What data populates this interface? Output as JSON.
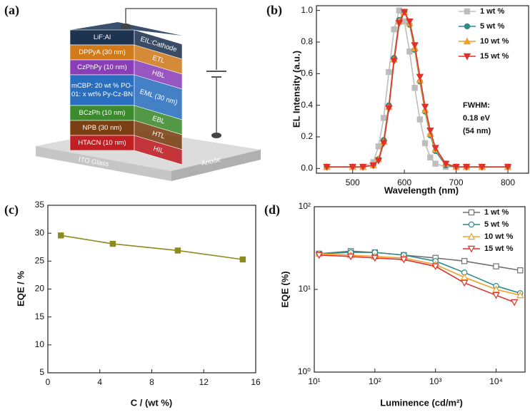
{
  "panel_labels": [
    "(a)",
    "(b)",
    "(c)",
    "(d)"
  ],
  "device": {
    "layers": [
      {
        "material_lines": [
          "LiF:Al"
        ],
        "role": "EIL:Cathode",
        "color": "#1e3350"
      },
      {
        "material_lines": [
          "DPPyA (30 nm)"
        ],
        "role": "ETL",
        "color": "#d07a1c"
      },
      {
        "material_lines": [
          "CzPhPy (10 nm)"
        ],
        "role": "HBL",
        "color": "#8a3fb8"
      },
      {
        "material_lines": [
          "mCBP: 20 wt % PO-",
          "01: x wt% Py-Cz-BN"
        ],
        "role": "EML (30 nm)",
        "color": "#2a6fbf"
      },
      {
        "material_lines": [
          "BCzPh (10 nm)"
        ],
        "role": "EBL",
        "color": "#3c8a2e"
      },
      {
        "material_lines": [
          "NPB (30 nm)"
        ],
        "role": "HTL",
        "color": "#7a3f12"
      },
      {
        "material_lines": [
          "HTACN (10 nm)"
        ],
        "role": "HIL",
        "color": "#c01f24"
      }
    ],
    "substrate": "ITO Glass",
    "anode": "Anode"
  },
  "chart_data": [
    {
      "type": "line",
      "x_label": "Wavelength (nm)",
      "y_label": "EL Intensity (a.u.)",
      "x": [
        450,
        500,
        520,
        540,
        550,
        560,
        570,
        580,
        590,
        600,
        610,
        620,
        630,
        640,
        650,
        660,
        680,
        700,
        720,
        750,
        800
      ],
      "xlim": [
        430,
        840
      ],
      "xticks": [
        500,
        600,
        700,
        800
      ],
      "ylim": [
        -0.03,
        1.03
      ],
      "yticks": [
        {
          "value": 0,
          "label": "0.0"
        },
        0.2,
        0.4,
        0.6,
        0.8,
        {
          "value": 1,
          "label": "1.0"
        }
      ],
      "legend": "upper right",
      "annotations": [
        "FWHM:",
        "0.18 eV",
        "(54 nm)"
      ],
      "series": [
        {
          "name": "1 wt %",
          "color": "#bdbdbd",
          "marker": "square",
          "values": [
            0.01,
            0.01,
            0.01,
            0.04,
            0.14,
            0.32,
            0.61,
            0.88,
            1.0,
            0.93,
            0.74,
            0.51,
            0.31,
            0.16,
            0.07,
            0.03,
            0.01,
            0.01,
            0.01,
            0.01,
            0.01
          ]
        },
        {
          "name": "5 wt %",
          "color": "#2f8c8a",
          "marker": "circle",
          "values": [
            0.01,
            0.01,
            0.01,
            0.02,
            0.06,
            0.18,
            0.4,
            0.7,
            0.94,
            0.99,
            0.91,
            0.75,
            0.55,
            0.36,
            0.21,
            0.11,
            0.02,
            0.01,
            0.01,
            0.01,
            0.01
          ]
        },
        {
          "name": "10 wt %",
          "color": "#f2a127",
          "marker": "triangle-up",
          "values": [
            0.01,
            0.01,
            0.01,
            0.02,
            0.06,
            0.17,
            0.39,
            0.69,
            0.93,
            0.99,
            0.92,
            0.76,
            0.56,
            0.37,
            0.22,
            0.12,
            0.03,
            0.01,
            0.01,
            0.01,
            0.01
          ]
        },
        {
          "name": "15 wt %",
          "color": "#e0302a",
          "marker": "triangle-down",
          "values": [
            0.01,
            0.01,
            0.01,
            0.02,
            0.05,
            0.16,
            0.38,
            0.68,
            0.92,
            0.99,
            0.93,
            0.78,
            0.58,
            0.39,
            0.24,
            0.13,
            0.03,
            0.01,
            0.01,
            0.01,
            0.01
          ]
        }
      ]
    },
    {
      "type": "line",
      "x_label": "C / (wt %)",
      "y_label": "EQE / %",
      "x": [
        1,
        5,
        10,
        15
      ],
      "xlim": [
        0,
        16
      ],
      "xticks": [
        0,
        4,
        8,
        12,
        16
      ],
      "ylim": [
        5,
        35
      ],
      "yticks": [
        5,
        10,
        15,
        20,
        25,
        30,
        35
      ],
      "series": [
        {
          "color": "#8b8c1c",
          "marker": "square",
          "values": [
            29.6,
            28.1,
            26.9,
            25.3
          ]
        }
      ]
    },
    {
      "type": "line",
      "x_label": "Luminence (cd/m²)",
      "y_label": "EQE (%)",
      "xscale": "log",
      "yscale": "log",
      "markers_open": true,
      "legend": "upper right",
      "xlim": [
        10,
        30000
      ],
      "xticks": [
        {
          "value": 10,
          "label": "10¹"
        },
        {
          "value": 100,
          "label": "10²"
        },
        {
          "value": 1000,
          "label": "10³"
        },
        {
          "value": 10000,
          "label": "10⁴"
        }
      ],
      "ylim": [
        1,
        100
      ],
      "yticks": [
        {
          "value": 1,
          "label": "10⁰"
        },
        {
          "value": 10,
          "label": "10¹"
        },
        {
          "value": 100,
          "label": "10²"
        }
      ],
      "series": [
        {
          "name": "1 wt %",
          "color": "#707070",
          "marker": "square",
          "x": [
            12,
            40,
            100,
            300,
            1000,
            3000,
            10000,
            25000
          ],
          "values": [
            27,
            29,
            28,
            26,
            24,
            22,
            19,
            17
          ]
        },
        {
          "name": "5 wt %",
          "color": "#2f8c8a",
          "marker": "circle",
          "x": [
            12,
            40,
            100,
            300,
            1000,
            3000,
            10000,
            25000
          ],
          "values": [
            27,
            28,
            28,
            26,
            22,
            16,
            11,
            9
          ]
        },
        {
          "name": "10 wt %",
          "color": "#f2a127",
          "marker": "triangle-up",
          "x": [
            12,
            40,
            100,
            300,
            1000,
            3000,
            10000,
            25000
          ],
          "values": [
            27,
            26,
            25,
            24,
            20,
            14,
            10,
            8.5
          ]
        },
        {
          "name": "15 wt %",
          "color": "#e0302a",
          "marker": "triangle-down",
          "x": [
            12,
            40,
            100,
            300,
            1000,
            3000,
            10000,
            20000
          ],
          "values": [
            26,
            25,
            24,
            23,
            19,
            12,
            8.5,
            7
          ]
        }
      ]
    }
  ]
}
